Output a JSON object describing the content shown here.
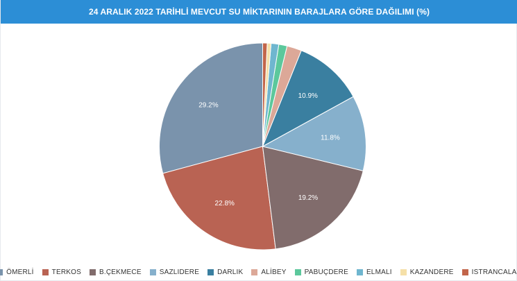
{
  "header": {
    "title": "24 ARALIK 2022 TARİHLİ MEVCUT SU MİKTARININ BARAJLARA GÖRE DAĞILIMI (%)"
  },
  "chart_data": {
    "type": "pie",
    "title": "24 ARALIK 2022 TARİHLİ MEVCUT SU MİKTARININ BARAJLARA GÖRE DAĞILIMI (%)",
    "legend_position": "bottom",
    "label_unit": "%",
    "start": "top",
    "direction": "counterclockwise",
    "series": [
      {
        "name": "ÖMERLİ",
        "value": 29.2,
        "label": "29.2%",
        "color": "#7a93ac"
      },
      {
        "name": "TERKOS",
        "value": 22.8,
        "label": "22.8%",
        "color": "#b96353"
      },
      {
        "name": "B.ÇEKMECE",
        "value": 19.2,
        "label": "19.2%",
        "color": "#816c6c"
      },
      {
        "name": "SAZLIDERE",
        "value": 11.8,
        "label": "11.8%",
        "color": "#86b0cc"
      },
      {
        "name": "DARLIK",
        "value": 10.9,
        "label": "10.9%",
        "color": "#3a7fa0"
      },
      {
        "name": "ALİBEY",
        "value": 2.3,
        "label": "",
        "color": "#dca898"
      },
      {
        "name": "PABUÇDERE",
        "value": 1.3,
        "label": "",
        "color": "#5cc89c"
      },
      {
        "name": "ELMALI",
        "value": 1.2,
        "label": "",
        "color": "#6fb6cf"
      },
      {
        "name": "KAZANDERE",
        "value": 0.6,
        "label": "",
        "color": "#f5e0a8"
      },
      {
        "name": "ISTRANCALAR",
        "value": 0.7,
        "label": "",
        "color": "#c2654a"
      }
    ]
  }
}
